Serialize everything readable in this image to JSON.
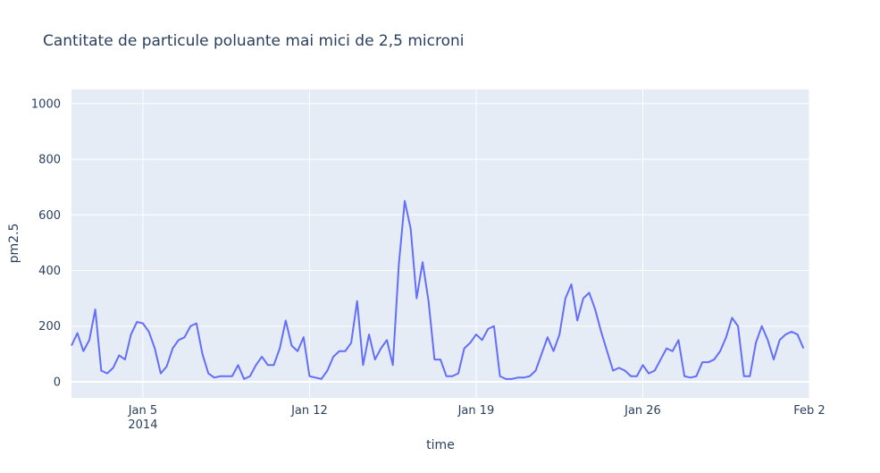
{
  "chart_data": {
    "type": "line",
    "title": "Cantitate de particule poluante mai mici de 2,5 microni",
    "x_label": "time",
    "y_label": "pm2.5",
    "x": [
      "2014-01-02 00:00",
      "2014-01-02 06:00",
      "2014-01-02 12:00",
      "2014-01-02 18:00",
      "2014-01-03 00:00",
      "2014-01-03 06:00",
      "2014-01-03 12:00",
      "2014-01-03 18:00",
      "2014-01-04 00:00",
      "2014-01-04 06:00",
      "2014-01-04 12:00",
      "2014-01-04 18:00",
      "2014-01-05 00:00",
      "2014-01-05 06:00",
      "2014-01-05 12:00",
      "2014-01-05 18:00",
      "2014-01-06 00:00",
      "2014-01-06 06:00",
      "2014-01-06 12:00",
      "2014-01-06 18:00",
      "2014-01-07 00:00",
      "2014-01-07 06:00",
      "2014-01-07 12:00",
      "2014-01-07 18:00",
      "2014-01-08 00:00",
      "2014-01-08 06:00",
      "2014-01-08 12:00",
      "2014-01-08 18:00",
      "2014-01-09 00:00",
      "2014-01-09 06:00",
      "2014-01-09 12:00",
      "2014-01-09 18:00",
      "2014-01-10 00:00",
      "2014-01-10 06:00",
      "2014-01-10 12:00",
      "2014-01-10 18:00",
      "2014-01-11 00:00",
      "2014-01-11 06:00",
      "2014-01-11 12:00",
      "2014-01-11 18:00",
      "2014-01-12 00:00",
      "2014-01-12 06:00",
      "2014-01-12 12:00",
      "2014-01-12 18:00",
      "2014-01-13 00:00",
      "2014-01-13 06:00",
      "2014-01-13 12:00",
      "2014-01-13 18:00",
      "2014-01-14 00:00",
      "2014-01-14 06:00",
      "2014-01-14 12:00",
      "2014-01-14 18:00",
      "2014-01-15 00:00",
      "2014-01-15 06:00",
      "2014-01-15 12:00",
      "2014-01-15 18:00",
      "2014-01-16 00:00",
      "2014-01-16 06:00",
      "2014-01-16 12:00",
      "2014-01-16 18:00",
      "2014-01-17 00:00",
      "2014-01-17 06:00",
      "2014-01-17 12:00",
      "2014-01-17 18:00",
      "2014-01-18 00:00",
      "2014-01-18 06:00",
      "2014-01-18 12:00",
      "2014-01-18 18:00",
      "2014-01-19 00:00",
      "2014-01-19 06:00",
      "2014-01-19 12:00",
      "2014-01-19 18:00",
      "2014-01-20 00:00",
      "2014-01-20 06:00",
      "2014-01-20 12:00",
      "2014-01-20 18:00",
      "2014-01-21 00:00",
      "2014-01-21 06:00",
      "2014-01-21 12:00",
      "2014-01-21 18:00",
      "2014-01-22 00:00",
      "2014-01-22 06:00",
      "2014-01-22 12:00",
      "2014-01-22 18:00",
      "2014-01-23 00:00",
      "2014-01-23 06:00",
      "2014-01-23 12:00",
      "2014-01-23 18:00",
      "2014-01-24 00:00",
      "2014-01-24 06:00",
      "2014-01-24 12:00",
      "2014-01-24 18:00",
      "2014-01-25 00:00",
      "2014-01-25 06:00",
      "2014-01-25 12:00",
      "2014-01-25 18:00",
      "2014-01-26 00:00",
      "2014-01-26 06:00",
      "2014-01-26 12:00",
      "2014-01-26 18:00",
      "2014-01-27 00:00",
      "2014-01-27 06:00",
      "2014-01-27 12:00",
      "2014-01-27 18:00",
      "2014-01-28 00:00",
      "2014-01-28 06:00",
      "2014-01-28 12:00",
      "2014-01-28 18:00",
      "2014-01-29 00:00",
      "2014-01-29 06:00",
      "2014-01-29 12:00",
      "2014-01-29 18:00",
      "2014-01-30 00:00",
      "2014-01-30 06:00",
      "2014-01-30 12:00",
      "2014-01-30 18:00",
      "2014-01-31 00:00",
      "2014-01-31 06:00",
      "2014-01-31 12:00",
      "2014-01-31 18:00",
      "2014-02-01 00:00",
      "2014-02-01 06:00",
      "2014-02-01 12:00",
      "2014-02-01 18:00"
    ],
    "series": [
      {
        "name": "pm2.5",
        "color": "#636efa",
        "values": [
          130,
          175,
          110,
          150,
          260,
          40,
          30,
          50,
          95,
          80,
          170,
          215,
          210,
          180,
          120,
          30,
          55,
          120,
          150,
          160,
          200,
          210,
          100,
          30,
          15,
          20,
          20,
          20,
          60,
          10,
          20,
          60,
          90,
          60,
          60,
          120,
          220,
          130,
          110,
          160,
          20,
          15,
          10,
          40,
          90,
          110,
          110,
          140,
          290,
          60,
          170,
          80,
          120,
          150,
          60,
          420,
          650,
          550,
          300,
          430,
          290,
          80,
          80,
          20,
          20,
          30,
          120,
          140,
          170,
          150,
          190,
          200,
          20,
          10,
          10,
          15,
          15,
          20,
          40,
          100,
          160,
          110,
          170,
          300,
          350,
          220,
          300,
          320,
          260,
          180,
          110,
          40,
          50,
          40,
          20,
          20,
          60,
          30,
          40,
          80,
          120,
          110,
          150,
          20,
          15,
          20,
          70,
          70,
          80,
          110,
          160,
          230,
          200,
          20,
          20,
          140,
          200,
          150,
          80,
          150,
          170,
          180,
          170,
          120
        ]
      }
    ],
    "xlim": [
      "2014-01-02 00:00",
      "2014-02-02 00:00"
    ],
    "xticks": [
      {
        "value": "2014-01-05 00:00",
        "label": "Jan 5\n2014"
      },
      {
        "value": "2014-01-12 00:00",
        "label": "Jan 12"
      },
      {
        "value": "2014-01-19 00:00",
        "label": "Jan 19"
      },
      {
        "value": "2014-01-26 00:00",
        "label": "Jan 26"
      },
      {
        "value": "2014-02-02 00:00",
        "label": "Feb 2"
      }
    ],
    "ylim": [
      -58,
      1051
    ],
    "yticks": [
      0,
      200,
      400,
      600,
      800,
      1000
    ],
    "grid": true
  }
}
